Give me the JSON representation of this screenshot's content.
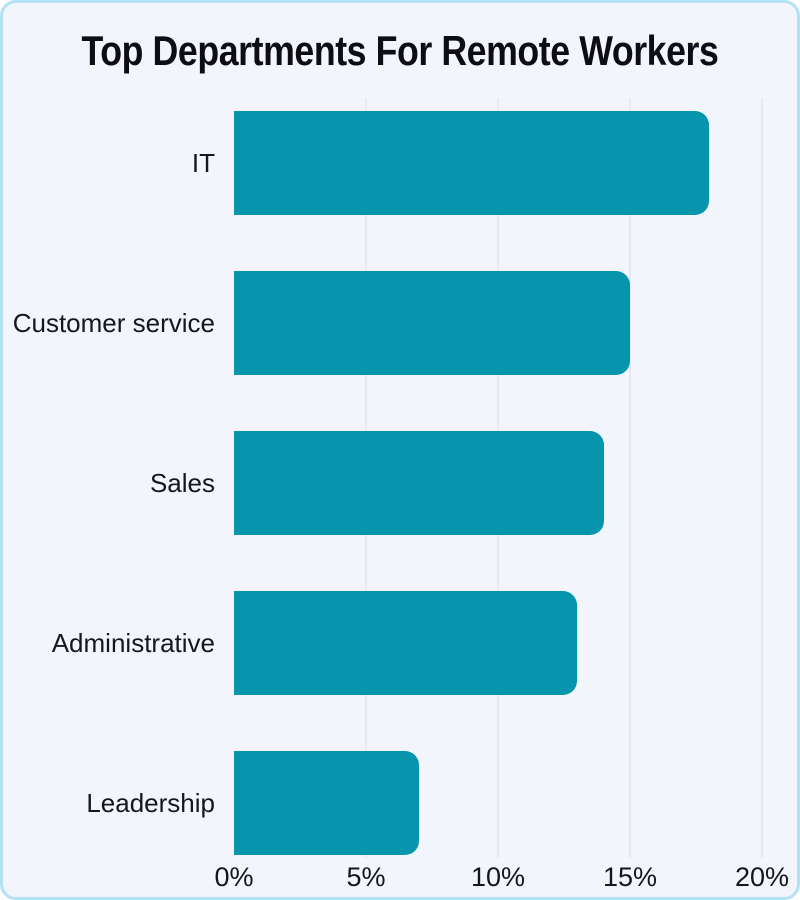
{
  "card": {
    "background_color": "#f2f6fc",
    "border_color": "#b3e1f5"
  },
  "chart_data": {
    "type": "bar",
    "orientation": "horizontal",
    "title": "Top Departments For Remote Workers",
    "categories": [
      "IT",
      "Customer service",
      "Sales",
      "Administrative",
      "Leadership"
    ],
    "values": [
      18,
      15,
      14,
      13,
      7
    ],
    "value_unit": "%",
    "xlim": [
      0,
      20
    ],
    "x_ticks": [
      "0%",
      "5%",
      "10%",
      "15%",
      "20%"
    ],
    "x_tick_values": [
      0,
      5,
      10,
      15,
      20
    ],
    "bar_color": "#0795ae",
    "grid": true,
    "gridline_color": "#d9dde3",
    "legend": "none"
  }
}
